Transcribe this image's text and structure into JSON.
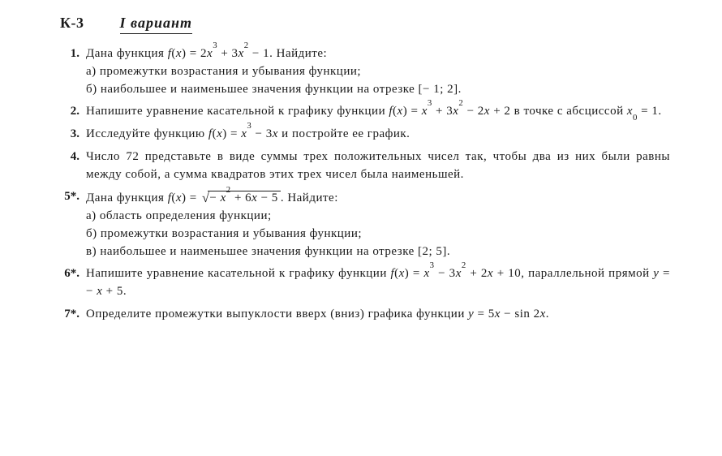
{
  "header": {
    "code": "К-3",
    "variant": "I вариант"
  },
  "items": [
    {
      "num": "1.",
      "lead": "Дана функция ",
      "formula_html": "<span class='math'>f</span>(<span class='math'>x</span>) = 2<span class='math'>x</span><sup>3</sup> + 3<span class='math'>x</span><sup>2</sup> − 1.",
      "tail": " Найдите:",
      "subs": [
        "а) промежутки возрастания и убывания функции;",
        "б) наибольшее и наименьшее значения функции на отрезке [− 1;  2]."
      ]
    },
    {
      "num": "2.",
      "lead": "Напишите уравнение касательной к графику функции ",
      "formula_html": "<span class='math'>f</span>(<span class='math'>x</span>) = <span class='math'>x</span><sup>3</sup> + 3<span class='math'>x</span><sup>2</sup> − 2<span class='math'>x</span> + 2",
      "tail": " в точке с абсциссой ",
      "tail2_html": "<span class='math'>x</span><sub class='s'>0</sub> = 1."
    },
    {
      "num": "3.",
      "lead": "Исследуйте функцию ",
      "formula_html": "<span class='math'>f</span>(<span class='math'>x</span>) = <span class='math'>x</span><sup>3</sup> − 3<span class='math'>x</span>",
      "tail": " и постройте ее график."
    },
    {
      "num": "4.",
      "plain": "Число 72 представьте в виде суммы трех положительных чисел так, чтобы два из них были равны между собой, а сумма квадратов этих трех чисел была наименьшей."
    },
    {
      "num": "5*.",
      "lead": "Дана функция ",
      "formula_html": "<span class='math'>f</span>(<span class='math'>x</span>) = <span class='sqrt'><span class='radicand'>− <span class='math'>x</span><sup>2</sup> + 6<span class='math'>x</span> − 5</span></span>.",
      "tail": " Найдите:",
      "subs": [
        "а) область определения функции;",
        "б) промежутки возрастания и убывания функции;",
        "в) наибольшее и наименьшее значения функции на отрезке [2;  5]."
      ]
    },
    {
      "num": "6*.",
      "lead": "Напишите уравнение касательной к графику функции ",
      "formula_html": "<span class='math'>f</span>(<span class='math'>x</span>) = <span class='math'>x</span><sup>3</sup> − 3<span class='math'>x</span><sup>2</sup> + 2<span class='math'>x</span> + 10,",
      "tail": " параллельной прямой ",
      "tail2_html": "<span class='math'>y</span> = − <span class='math'>x</span> + 5."
    },
    {
      "num": "7*.",
      "lead": "Определите промежутки выпуклости вверх (вниз) графика функции ",
      "formula_html": "<span class='math'>y</span> = 5<span class='math'>x</span> − sin 2<span class='math'>x</span>."
    }
  ]
}
